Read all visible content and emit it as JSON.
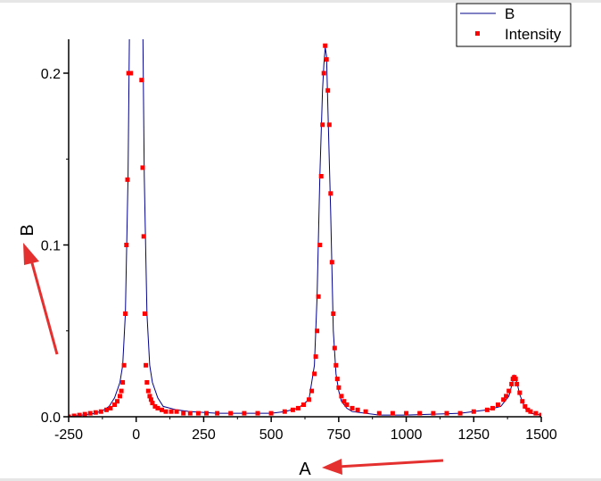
{
  "chart_data": {
    "type": "line",
    "xlabel": "A",
    "ylabel": "B",
    "xlim": [
      -250,
      1500
    ],
    "ylim": [
      0,
      0.22
    ],
    "x_ticks": [
      -250,
      0,
      250,
      500,
      750,
      1000,
      1250,
      1500
    ],
    "x_tick_labels": [
      "-250",
      "0",
      "250",
      "500",
      "750",
      "1000",
      "1250",
      "1500"
    ],
    "y_ticks": [
      0,
      0.1,
      0.2
    ],
    "y_tick_labels": [
      "0.0",
      "0.1",
      "0.2"
    ],
    "legend_position": "top-right",
    "colors": {
      "line": "#00008b",
      "points": "#ff0000",
      "arrow": "#e53030"
    },
    "series": [
      {
        "name": "B",
        "style": "line",
        "x": [
          -250,
          -200,
          -150,
          -120,
          -100,
          -80,
          -60,
          -50,
          -40,
          -30,
          -25,
          -20,
          -15,
          -10,
          -5,
          0,
          5,
          10,
          15,
          20,
          25,
          30,
          40,
          50,
          60,
          80,
          100,
          150,
          200,
          300,
          400,
          500,
          550,
          600,
          640,
          660,
          670,
          680,
          690,
          695,
          700,
          705,
          710,
          720,
          730,
          740,
          750,
          760,
          780,
          800,
          900,
          1000,
          1200,
          1300,
          1350,
          1380,
          1390,
          1400,
          1410,
          1420,
          1440,
          1460,
          1500
        ],
        "values": [
          0.0,
          0.001,
          0.002,
          0.004,
          0.006,
          0.011,
          0.02,
          0.03,
          0.06,
          0.14,
          0.22,
          0.22,
          0.22,
          0.22,
          0.22,
          0.22,
          0.22,
          0.22,
          0.22,
          0.22,
          0.22,
          0.14,
          0.06,
          0.03,
          0.02,
          0.011,
          0.006,
          0.004,
          0.003,
          0.002,
          0.002,
          0.002,
          0.003,
          0.005,
          0.01,
          0.03,
          0.07,
          0.14,
          0.19,
          0.205,
          0.215,
          0.21,
          0.18,
          0.12,
          0.05,
          0.025,
          0.015,
          0.009,
          0.005,
          0.003,
          0.001,
          0.001,
          0.002,
          0.004,
          0.006,
          0.012,
          0.018,
          0.024,
          0.02,
          0.013,
          0.005,
          0.002,
          0.001
        ]
      },
      {
        "name": "Intensity",
        "style": "scatter",
        "x": [
          -250,
          -230,
          -210,
          -190,
          -170,
          -150,
          -130,
          -110,
          -95,
          -80,
          -70,
          -60,
          -55,
          -50,
          -45,
          -40,
          -36,
          -32,
          -28,
          -24,
          -20,
          20,
          24,
          28,
          32,
          36,
          40,
          45,
          50,
          55,
          60,
          70,
          80,
          95,
          110,
          130,
          150,
          175,
          200,
          230,
          260,
          300,
          350,
          400,
          450,
          500,
          550,
          580,
          600,
          620,
          640,
          650,
          660,
          665,
          670,
          675,
          680,
          685,
          690,
          695,
          700,
          705,
          710,
          715,
          720,
          725,
          730,
          735,
          740,
          745,
          750,
          760,
          770,
          780,
          800,
          820,
          850,
          900,
          950,
          1000,
          1050,
          1100,
          1150,
          1200,
          1250,
          1300,
          1320,
          1340,
          1360,
          1370,
          1380,
          1390,
          1395,
          1400,
          1405,
          1410,
          1420,
          1430,
          1440,
          1450,
          1460,
          1480,
          1500
        ],
        "values": [
          0.0,
          0.0005,
          0.001,
          0.0015,
          0.002,
          0.0025,
          0.003,
          0.004,
          0.005,
          0.007,
          0.009,
          0.012,
          0.015,
          0.02,
          0.03,
          0.06,
          0.1,
          0.138,
          0.2,
          0.2,
          0.2,
          0.196,
          0.145,
          0.105,
          0.06,
          0.03,
          0.02,
          0.015,
          0.012,
          0.01,
          0.008,
          0.006,
          0.005,
          0.004,
          0.003,
          0.003,
          0.003,
          0.002,
          0.002,
          0.002,
          0.002,
          0.002,
          0.002,
          0.002,
          0.002,
          0.002,
          0.003,
          0.004,
          0.005,
          0.007,
          0.01,
          0.015,
          0.025,
          0.035,
          0.05,
          0.07,
          0.1,
          0.14,
          0.17,
          0.2,
          0.216,
          0.208,
          0.19,
          0.17,
          0.13,
          0.09,
          0.06,
          0.04,
          0.03,
          0.022,
          0.017,
          0.012,
          0.009,
          0.007,
          0.005,
          0.004,
          0.003,
          0.002,
          0.002,
          0.002,
          0.002,
          0.002,
          0.002,
          0.002,
          0.003,
          0.004,
          0.005,
          0.007,
          0.01,
          0.012,
          0.015,
          0.019,
          0.022,
          0.023,
          0.022,
          0.019,
          0.014,
          0.009,
          0.006,
          0.004,
          0.003,
          0.002,
          0.001
        ]
      }
    ]
  }
}
